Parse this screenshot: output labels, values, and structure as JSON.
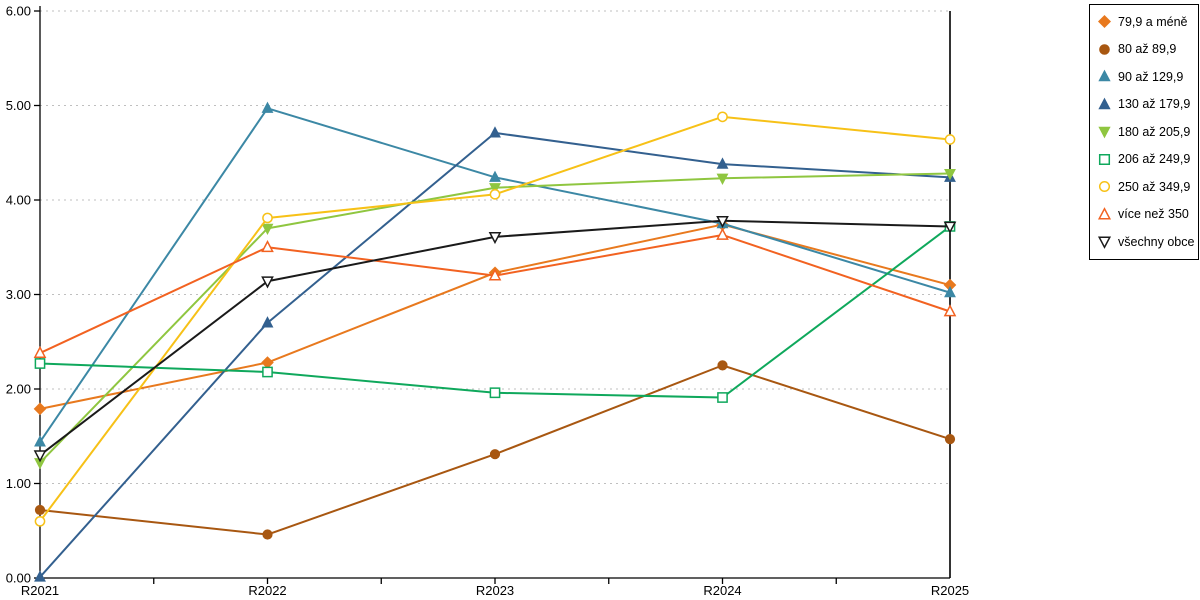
{
  "chart_data": {
    "type": "line",
    "title": "",
    "xlabel": "",
    "ylabel": "",
    "x_categories": [
      "R2021",
      "R2022",
      "R2023",
      "R2024",
      "R2025"
    ],
    "ylim": [
      0,
      6
    ],
    "y_ticks": [
      0,
      1,
      2,
      3,
      4,
      5,
      6
    ],
    "y_tick_labels": [
      "0.00",
      "1.00",
      "2.00",
      "3.00",
      "4.00",
      "5.00",
      "6.00"
    ],
    "grid": true,
    "legend_position": "right-outside",
    "series": [
      {
        "name": "79,9 a méně",
        "color": "#e8791e",
        "marker": "diamond",
        "filled": true,
        "values": [
          1.79,
          2.28,
          3.23,
          3.74,
          3.1
        ]
      },
      {
        "name": "80 až 89,9",
        "color": "#a85711",
        "marker": "circle",
        "filled": true,
        "values": [
          0.72,
          0.46,
          1.31,
          2.25,
          1.47
        ]
      },
      {
        "name": "90 až 129,9",
        "color": "#3c88a5",
        "marker": "triangle-up",
        "filled": true,
        "values": [
          1.44,
          4.97,
          4.24,
          3.75,
          3.02
        ]
      },
      {
        "name": "130 až 179,9",
        "color": "#33608f",
        "marker": "triangle-up",
        "filled": true,
        "values": [
          0.01,
          2.7,
          4.71,
          4.38,
          4.24
        ]
      },
      {
        "name": "180 až 205,9",
        "color": "#8fc640",
        "marker": "triangle-down",
        "filled": true,
        "values": [
          1.22,
          3.7,
          4.13,
          4.23,
          4.28
        ]
      },
      {
        "name": "206 až 249,9",
        "color": "#0fa85c",
        "marker": "square",
        "filled": false,
        "values": [
          2.27,
          2.18,
          1.96,
          1.91,
          3.72
        ]
      },
      {
        "name": "250 až 349,9",
        "color": "#f7c117",
        "marker": "circle",
        "filled": false,
        "values": [
          0.6,
          3.81,
          4.06,
          4.88,
          4.64
        ]
      },
      {
        "name": "více než 350",
        "color": "#f26221",
        "marker": "triangle-up",
        "filled": false,
        "values": [
          2.38,
          3.5,
          3.2,
          3.63,
          2.82
        ]
      },
      {
        "name": "všechny obce",
        "color": "#1a1a1a",
        "marker": "triangle-down",
        "filled": false,
        "values": [
          1.3,
          3.14,
          3.61,
          3.78,
          3.72
        ]
      }
    ],
    "colors": {
      "grid": "#bfbfbf",
      "axis": "#000000",
      "background": "#ffffff",
      "legend_border": "#000000",
      "tick_label": "#000000"
    }
  }
}
